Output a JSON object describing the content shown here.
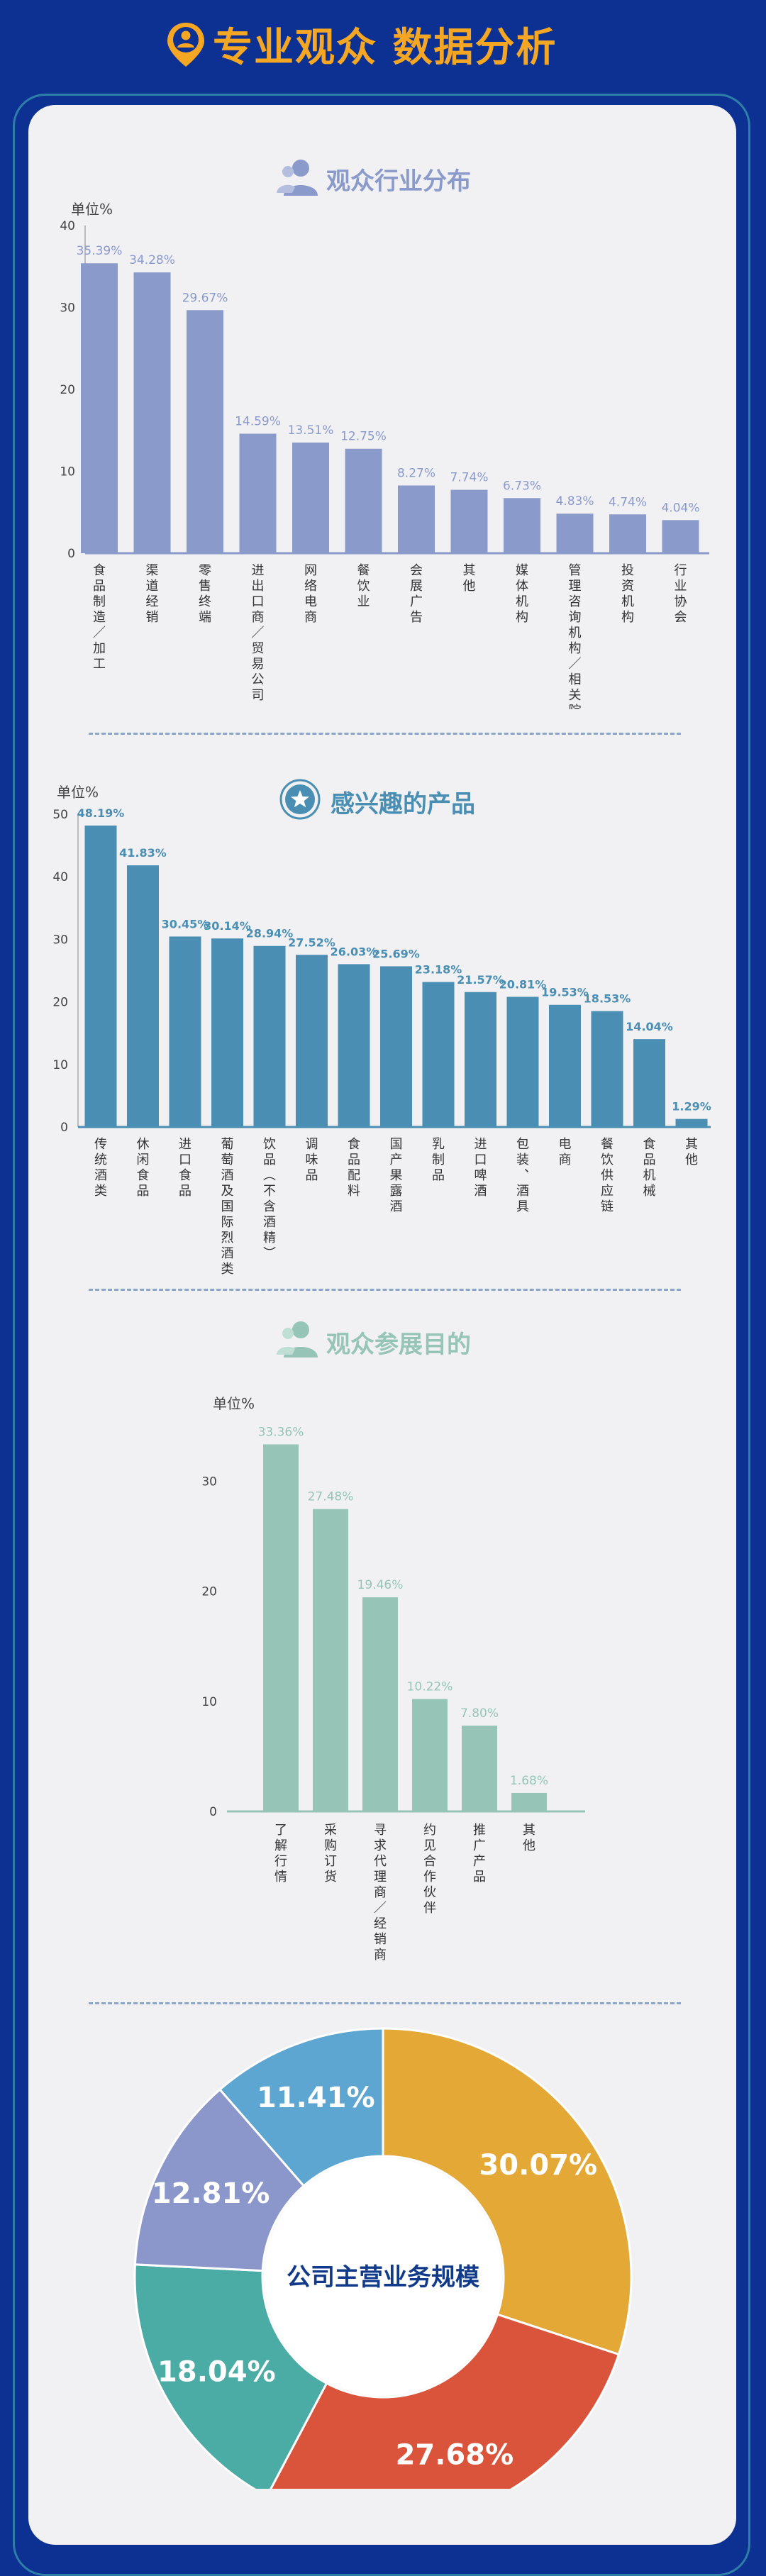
{
  "page": {
    "title": "专业观众 数据分析",
    "colors": {
      "background": "#0d3192",
      "title": "#f5a623",
      "card": "#f1f1f3"
    }
  },
  "section1": {
    "title": "观众行业分布",
    "icon": "person-icon",
    "color": "#8a9acb",
    "chart_data": {
      "type": "bar",
      "categories": [
        "食品制造/加工",
        "渠道经销",
        "零售终端",
        "进出口商/贸易公司",
        "网络电商",
        "餐饮业",
        "会展广告",
        "其他",
        "媒体机构",
        "管理咨询机构/相关院校",
        "投资机构",
        "行业协会"
      ],
      "values": [
        35.39,
        34.28,
        29.67,
        14.59,
        13.51,
        12.75,
        8.27,
        7.74,
        6.73,
        4.83,
        4.74,
        4.04
      ],
      "value_labels": [
        "35.39%",
        "34.28%",
        "29.67%",
        "14.59%",
        "13.51%",
        "12.75%",
        "8.27%",
        "7.74%",
        "6.73%",
        "4.83%",
        "4.74%",
        "4.04%"
      ],
      "unit": "单位%",
      "yticks": [
        "0",
        "10",
        "20",
        "30",
        "40"
      ],
      "ylim": [
        0,
        40
      ],
      "bar_color": "#8a9acb"
    }
  },
  "section2": {
    "title": "感兴趣的产品",
    "icon": "star-badge-icon",
    "color": "#4a8fb3",
    "chart_data": {
      "type": "bar",
      "categories": [
        "传统酒类",
        "休闲食品",
        "进口食品",
        "葡萄酒及国际烈酒类",
        "饮品(不含酒精)",
        "调味品",
        "食品配料",
        "国产果露酒",
        "乳制品",
        "进口啤酒",
        "包装、酒具",
        "电商",
        "餐饮供应链",
        "食品机械",
        "其他"
      ],
      "values": [
        48.19,
        41.83,
        30.45,
        30.14,
        28.94,
        27.52,
        26.03,
        25.69,
        23.18,
        21.57,
        20.81,
        19.53,
        18.53,
        14.04,
        1.29
      ],
      "value_labels": [
        "48.19%",
        "41.83%",
        "30.45%",
        "30.14%",
        "28.94%",
        "27.52%",
        "26.03%",
        "25.69%",
        "23.18%",
        "21.57%",
        "20.81%",
        "19.53%",
        "18.53%",
        "14.04%",
        "1.29%"
      ],
      "unit": "单位%",
      "yticks": [
        "0",
        "10",
        "20",
        "30",
        "40",
        "50"
      ],
      "ylim": [
        0,
        50
      ],
      "bar_color": "#4a8fb3"
    }
  },
  "section3": {
    "title": "观众参展目的",
    "icon": "person-icon",
    "color": "#96c5b7",
    "chart_data": {
      "type": "bar",
      "categories": [
        "了解行情",
        "采购订货",
        "寻求代理商/经销商",
        "约见合作伙伴",
        "推广产品",
        "其他"
      ],
      "values": [
        33.36,
        27.48,
        19.46,
        10.22,
        7.8,
        1.68
      ],
      "value_labels": [
        "33.36%",
        "27.48%",
        "19.46%",
        "10.22%",
        "7.80%",
        "1.68%"
      ],
      "unit": "单位%",
      "yticks": [
        "0",
        "10",
        "20",
        "30"
      ],
      "ylim": [
        0,
        35
      ],
      "bar_color": "#96c5b7"
    }
  },
  "section4": {
    "chart_data": {
      "type": "pie",
      "center_label": "公司主营业务规模",
      "slices": [
        {
          "value": 30.07,
          "label": "30.07%",
          "color": "#e3a835"
        },
        {
          "value": 27.68,
          "label": "27.68%",
          "color": "#d9543a"
        },
        {
          "value": 18.04,
          "label": "18.04%",
          "color": "#4aaca4"
        },
        {
          "value": 12.81,
          "label": "12.81%",
          "color": "#8b97ca"
        },
        {
          "value": 11.41,
          "label": "11.41%",
          "color": "#5ea6d2"
        }
      ]
    }
  }
}
